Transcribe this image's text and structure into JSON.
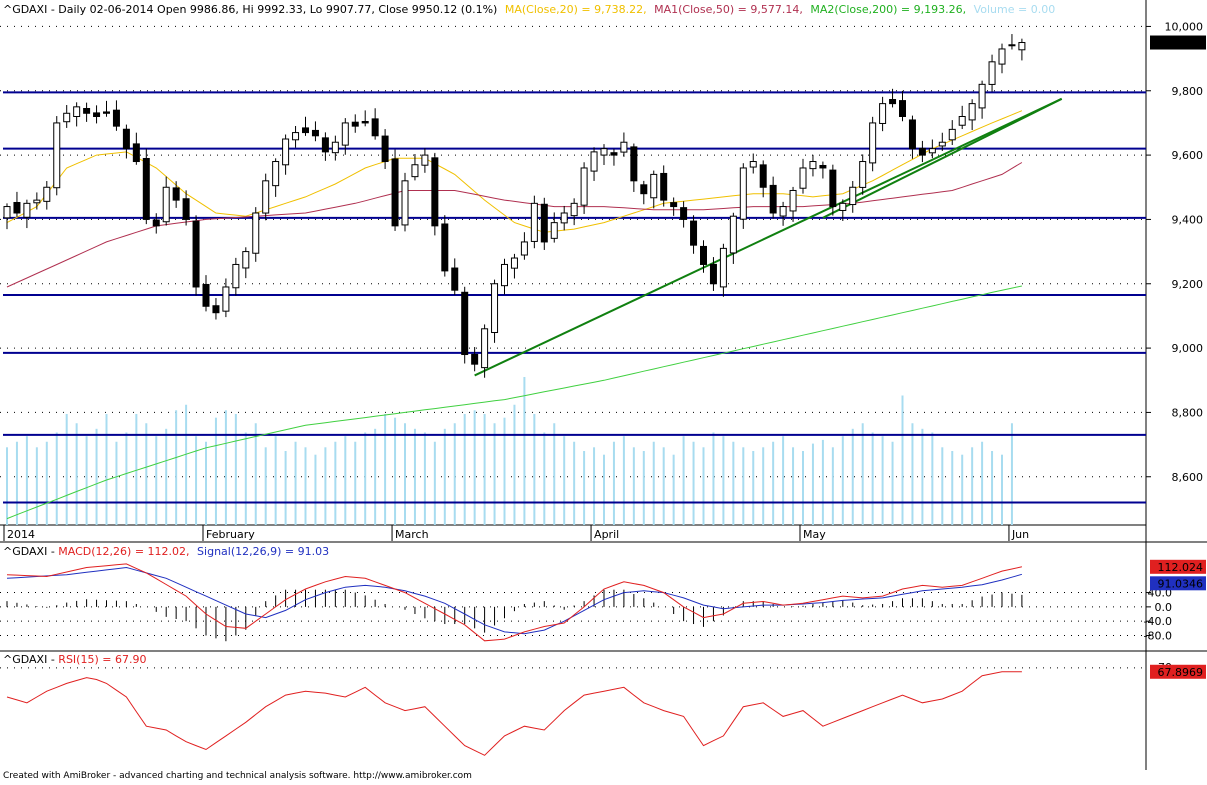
{
  "header": {
    "prefix": "^GDAXI - Daily 02-06-2014 Open 9986.86, Hi 9992.33, Lo 9907.77, Close 9950.12 (0.1%)",
    "ma20": "MA(Close,20) = 9,738.22,",
    "ma50": "MA1(Close,50) = 9,577.14,",
    "ma200": "MA2(Close,200) = 9,193.26,",
    "volume": "Volume = 0.00"
  },
  "macd_header": {
    "prefix": "^GDAXI - ",
    "macd": "MACD(12,26) = 112.02,",
    "signal": "Signal(12,26,9) = 91.03"
  },
  "rsi_header": {
    "prefix": "^GDAXI - ",
    "rsi": "RSI(15) = 67.90"
  },
  "footer": "Created with AmiBroker - advanced charting and technical analysis software. http://www.amibroker.com",
  "colors": {
    "ma20": "#f0c000",
    "ma50": "#b03050",
    "ma200": "#40d040",
    "volume": "#a8dcf0",
    "macd": "#e02020",
    "signal": "#2030c0",
    "rsi": "#e02020",
    "hline": "#000090",
    "trend": "#108010"
  },
  "chart_data": [
    {
      "type": "candlestick",
      "title": "^GDAXI - Daily",
      "y_ticks": [
        "10,000",
        "9,800",
        "9,600",
        "9,400",
        "9,200",
        "9,000",
        "8,800",
        "8,600"
      ],
      "y_tick_values": [
        10000,
        9800,
        9600,
        9400,
        9200,
        9000,
        8800,
        8600
      ],
      "ylim": [
        8450,
        10020
      ],
      "x_labels": [
        "2014",
        "February",
        "March",
        "April",
        "May",
        "Jun"
      ],
      "x_label_index": [
        0,
        20,
        39,
        59,
        80,
        101
      ],
      "n": 103,
      "last_label": "9,950.12",
      "horizontal_lines": [
        9795,
        9620,
        9405,
        9165,
        8985,
        8730,
        8520
      ],
      "trendlines": [
        {
          "from": [
            47,
            8915
          ],
          "to": [
            106,
            9775
          ]
        },
        {
          "from": [
            82,
            9405
          ],
          "to": [
            106,
            9775
          ]
        }
      ],
      "anchors": [
        [
          0,
          9440
        ],
        [
          1,
          9420
        ],
        [
          2,
          9450
        ],
        [
          3,
          9460
        ],
        [
          4,
          9500
        ],
        [
          5,
          9700
        ],
        [
          6,
          9730
        ],
        [
          7,
          9750
        ],
        [
          8,
          9730
        ],
        [
          9,
          9720
        ],
        [
          10,
          9730
        ],
        [
          11,
          9690
        ],
        [
          12,
          9620
        ],
        [
          13,
          9580
        ],
        [
          14,
          9400
        ],
        [
          15,
          9380
        ],
        [
          16,
          9500
        ],
        [
          17,
          9460
        ],
        [
          18,
          9400
        ],
        [
          19,
          9190
        ],
        [
          20,
          9130
        ],
        [
          21,
          9110
        ],
        [
          22,
          9190
        ],
        [
          23,
          9260
        ],
        [
          24,
          9300
        ],
        [
          25,
          9420
        ],
        [
          26,
          9520
        ],
        [
          27,
          9580
        ],
        [
          28,
          9650
        ],
        [
          29,
          9670
        ],
        [
          30,
          9670
        ],
        [
          31,
          9660
        ],
        [
          32,
          9610
        ],
        [
          33,
          9640
        ],
        [
          34,
          9700
        ],
        [
          35,
          9690
        ],
        [
          36,
          9700
        ],
        [
          37,
          9660
        ],
        [
          38,
          9580
        ],
        [
          39,
          9380
        ],
        [
          40,
          9520
        ],
        [
          41,
          9570
        ],
        [
          42,
          9600
        ],
        [
          43,
          9380
        ],
        [
          44,
          9240
        ],
        [
          45,
          9180
        ],
        [
          46,
          8980
        ],
        [
          47,
          8950
        ],
        [
          48,
          9060
        ],
        [
          49,
          9200
        ],
        [
          50,
          9260
        ],
        [
          51,
          9280
        ],
        [
          52,
          9330
        ],
        [
          53,
          9450
        ],
        [
          54,
          9330
        ],
        [
          55,
          9390
        ],
        [
          56,
          9420
        ],
        [
          57,
          9450
        ],
        [
          58,
          9560
        ],
        [
          59,
          9610
        ],
        [
          60,
          9620
        ],
        [
          61,
          9600
        ],
        [
          62,
          9640
        ],
        [
          63,
          9520
        ],
        [
          64,
          9480
        ],
        [
          65,
          9540
        ],
        [
          66,
          9460
        ],
        [
          67,
          9440
        ],
        [
          68,
          9400
        ],
        [
          69,
          9320
        ],
        [
          70,
          9260
        ],
        [
          71,
          9200
        ],
        [
          72,
          9310
        ],
        [
          73,
          9410
        ],
        [
          74,
          9560
        ],
        [
          75,
          9580
        ],
        [
          76,
          9500
        ],
        [
          77,
          9420
        ],
        [
          78,
          9440
        ],
        [
          79,
          9490
        ],
        [
          80,
          9560
        ],
        [
          81,
          9580
        ],
        [
          82,
          9560
        ],
        [
          83,
          9440
        ],
        [
          84,
          9450
        ],
        [
          85,
          9500
        ],
        [
          86,
          9580
        ],
        [
          87,
          9700
        ],
        [
          88,
          9760
        ],
        [
          89,
          9760
        ],
        [
          90,
          9720
        ],
        [
          91,
          9620
        ],
        [
          92,
          9600
        ],
        [
          93,
          9620
        ],
        [
          94,
          9640
        ],
        [
          95,
          9680
        ],
        [
          96,
          9720
        ],
        [
          97,
          9760
        ],
        [
          98,
          9820
        ],
        [
          99,
          9890
        ],
        [
          100,
          9930
        ],
        [
          101,
          9940
        ],
        [
          102,
          9950
        ]
      ],
      "ma20_anchors": [
        [
          0,
          9390
        ],
        [
          3,
          9440
        ],
        [
          6,
          9560
        ],
        [
          9,
          9600
        ],
        [
          12,
          9610
        ],
        [
          15,
          9560
        ],
        [
          18,
          9480
        ],
        [
          21,
          9420
        ],
        [
          24,
          9410
        ],
        [
          27,
          9440
        ],
        [
          30,
          9470
        ],
        [
          33,
          9510
        ],
        [
          36,
          9560
        ],
        [
          39,
          9590
        ],
        [
          42,
          9590
        ],
        [
          45,
          9540
        ],
        [
          48,
          9460
        ],
        [
          51,
          9390
        ],
        [
          54,
          9360
        ],
        [
          57,
          9370
        ],
        [
          60,
          9390
        ],
        [
          63,
          9420
        ],
        [
          66,
          9450
        ],
        [
          69,
          9460
        ],
        [
          72,
          9470
        ],
        [
          75,
          9480
        ],
        [
          78,
          9480
        ],
        [
          81,
          9470
        ],
        [
          84,
          9480
        ],
        [
          87,
          9520
        ],
        [
          90,
          9570
        ],
        [
          93,
          9620
        ],
        [
          96,
          9660
        ],
        [
          99,
          9700
        ],
        [
          102,
          9738
        ]
      ],
      "ma50_anchors": [
        [
          0,
          9190
        ],
        [
          5,
          9260
        ],
        [
          10,
          9330
        ],
        [
          15,
          9380
        ],
        [
          20,
          9400
        ],
        [
          25,
          9410
        ],
        [
          30,
          9420
        ],
        [
          35,
          9450
        ],
        [
          40,
          9490
        ],
        [
          45,
          9490
        ],
        [
          50,
          9460
        ],
        [
          55,
          9440
        ],
        [
          60,
          9440
        ],
        [
          65,
          9430
        ],
        [
          70,
          9430
        ],
        [
          75,
          9440
        ],
        [
          80,
          9440
        ],
        [
          85,
          9450
        ],
        [
          90,
          9470
        ],
        [
          95,
          9490
        ],
        [
          100,
          9540
        ],
        [
          102,
          9577
        ]
      ],
      "ma200_anchors": [
        [
          0,
          8470
        ],
        [
          10,
          8590
        ],
        [
          20,
          8690
        ],
        [
          30,
          8760
        ],
        [
          40,
          8800
        ],
        [
          50,
          8840
        ],
        [
          60,
          8900
        ],
        [
          70,
          8970
        ],
        [
          80,
          9040
        ],
        [
          90,
          9110
        ],
        [
          100,
          9180
        ],
        [
          102,
          9193
        ]
      ],
      "volume_fraction": [
        0.42,
        0.45,
        0.48,
        0.42,
        0.45,
        0.5,
        0.6,
        0.55,
        0.48,
        0.52,
        0.6,
        0.45,
        0.5,
        0.6,
        0.55,
        0.48,
        0.52,
        0.62,
        0.65,
        0.48,
        0.45,
        0.58,
        0.62,
        0.6,
        0.5,
        0.55,
        0.42,
        0.48,
        0.4,
        0.45,
        0.42,
        0.38,
        0.42,
        0.45,
        0.48,
        0.45,
        0.5,
        0.52,
        0.6,
        0.58,
        0.55,
        0.52,
        0.5,
        0.45,
        0.52,
        0.55,
        0.6,
        0.62,
        0.6,
        0.55,
        0.58,
        0.65,
        0.8,
        0.6,
        0.5,
        0.55,
        0.48,
        0.45,
        0.4,
        0.42,
        0.38,
        0.45,
        0.48,
        0.42,
        0.4,
        0.45,
        0.42,
        0.38,
        0.48,
        0.45,
        0.42,
        0.5,
        0.48,
        0.45,
        0.42,
        0.4,
        0.42,
        0.45,
        0.48,
        0.42,
        0.4,
        0.44,
        0.46,
        0.42,
        0.48,
        0.52,
        0.55,
        0.5,
        0.48,
        0.45,
        0.7,
        0.55,
        0.52,
        0.5,
        0.42,
        0.4,
        0.38,
        0.42,
        0.45,
        0.4,
        0.38,
        0.55,
        0.0
      ]
    },
    {
      "type": "line",
      "title": "MACD(12,26)",
      "y_ticks": [
        "40.0",
        "0.0",
        "-40.0",
        "-80.0"
      ],
      "y_tick_values": [
        40,
        0,
        -40,
        -80
      ],
      "ylim": [
        -115,
        145
      ],
      "macd_label": "112.024",
      "signal_label": "91.0346",
      "macd_anchors": [
        [
          0,
          90
        ],
        [
          4,
          85
        ],
        [
          8,
          110
        ],
        [
          12,
          120
        ],
        [
          14,
          95
        ],
        [
          18,
          30
        ],
        [
          20,
          -20
        ],
        [
          22,
          -55
        ],
        [
          24,
          -60
        ],
        [
          26,
          -20
        ],
        [
          28,
          20
        ],
        [
          30,
          50
        ],
        [
          32,
          70
        ],
        [
          34,
          85
        ],
        [
          36,
          80
        ],
        [
          38,
          60
        ],
        [
          40,
          40
        ],
        [
          42,
          10
        ],
        [
          44,
          -20
        ],
        [
          46,
          -50
        ],
        [
          48,
          -95
        ],
        [
          50,
          -90
        ],
        [
          52,
          -70
        ],
        [
          54,
          -55
        ],
        [
          56,
          -45
        ],
        [
          58,
          0
        ],
        [
          60,
          50
        ],
        [
          62,
          70
        ],
        [
          64,
          60
        ],
        [
          66,
          40
        ],
        [
          68,
          0
        ],
        [
          70,
          -30
        ],
        [
          72,
          -20
        ],
        [
          74,
          10
        ],
        [
          76,
          15
        ],
        [
          78,
          5
        ],
        [
          80,
          10
        ],
        [
          82,
          20
        ],
        [
          84,
          30
        ],
        [
          86,
          25
        ],
        [
          88,
          30
        ],
        [
          90,
          50
        ],
        [
          92,
          60
        ],
        [
          94,
          55
        ],
        [
          96,
          60
        ],
        [
          98,
          80
        ],
        [
          100,
          100
        ],
        [
          102,
          112
        ]
      ],
      "signal_anchors": [
        [
          0,
          80
        ],
        [
          6,
          90
        ],
        [
          12,
          110
        ],
        [
          16,
          80
        ],
        [
          20,
          30
        ],
        [
          24,
          -20
        ],
        [
          26,
          -30
        ],
        [
          28,
          -10
        ],
        [
          30,
          20
        ],
        [
          32,
          40
        ],
        [
          34,
          55
        ],
        [
          36,
          60
        ],
        [
          38,
          55
        ],
        [
          40,
          45
        ],
        [
          42,
          30
        ],
        [
          44,
          10
        ],
        [
          46,
          -20
        ],
        [
          48,
          -50
        ],
        [
          50,
          -70
        ],
        [
          52,
          -75
        ],
        [
          54,
          -65
        ],
        [
          56,
          -40
        ],
        [
          58,
          -10
        ],
        [
          60,
          20
        ],
        [
          62,
          40
        ],
        [
          64,
          45
        ],
        [
          66,
          40
        ],
        [
          68,
          25
        ],
        [
          70,
          5
        ],
        [
          72,
          -5
        ],
        [
          74,
          0
        ],
        [
          76,
          5
        ],
        [
          78,
          5
        ],
        [
          80,
          8
        ],
        [
          82,
          12
        ],
        [
          84,
          18
        ],
        [
          86,
          22
        ],
        [
          88,
          25
        ],
        [
          90,
          35
        ],
        [
          92,
          45
        ],
        [
          94,
          50
        ],
        [
          96,
          55
        ],
        [
          98,
          62
        ],
        [
          100,
          75
        ],
        [
          102,
          91
        ]
      ]
    },
    {
      "type": "line",
      "title": "RSI(15)",
      "y_ticks": [
        "70"
      ],
      "y_tick_values": [
        70
      ],
      "ylim": [
        20,
        72
      ],
      "rsi_label": "67.8969",
      "rsi_anchors": [
        [
          0,
          55
        ],
        [
          2,
          52
        ],
        [
          4,
          58
        ],
        [
          6,
          62
        ],
        [
          8,
          65
        ],
        [
          9,
          64
        ],
        [
          10,
          62
        ],
        [
          12,
          55
        ],
        [
          14,
          40
        ],
        [
          16,
          38
        ],
        [
          18,
          32
        ],
        [
          20,
          28
        ],
        [
          22,
          35
        ],
        [
          24,
          42
        ],
        [
          26,
          50
        ],
        [
          28,
          56
        ],
        [
          30,
          58
        ],
        [
          32,
          57
        ],
        [
          34,
          55
        ],
        [
          36,
          60
        ],
        [
          38,
          52
        ],
        [
          40,
          48
        ],
        [
          42,
          50
        ],
        [
          44,
          40
        ],
        [
          46,
          30
        ],
        [
          48,
          25
        ],
        [
          50,
          35
        ],
        [
          52,
          40
        ],
        [
          54,
          38
        ],
        [
          56,
          48
        ],
        [
          58,
          56
        ],
        [
          60,
          58
        ],
        [
          62,
          60
        ],
        [
          64,
          52
        ],
        [
          66,
          48
        ],
        [
          68,
          45
        ],
        [
          70,
          30
        ],
        [
          72,
          35
        ],
        [
          74,
          50
        ],
        [
          76,
          52
        ],
        [
          78,
          45
        ],
        [
          80,
          48
        ],
        [
          82,
          40
        ],
        [
          84,
          44
        ],
        [
          86,
          48
        ],
        [
          88,
          52
        ],
        [
          90,
          56
        ],
        [
          92,
          52
        ],
        [
          94,
          54
        ],
        [
          96,
          58
        ],
        [
          98,
          66
        ],
        [
          100,
          68
        ],
        [
          102,
          68
        ]
      ]
    }
  ]
}
